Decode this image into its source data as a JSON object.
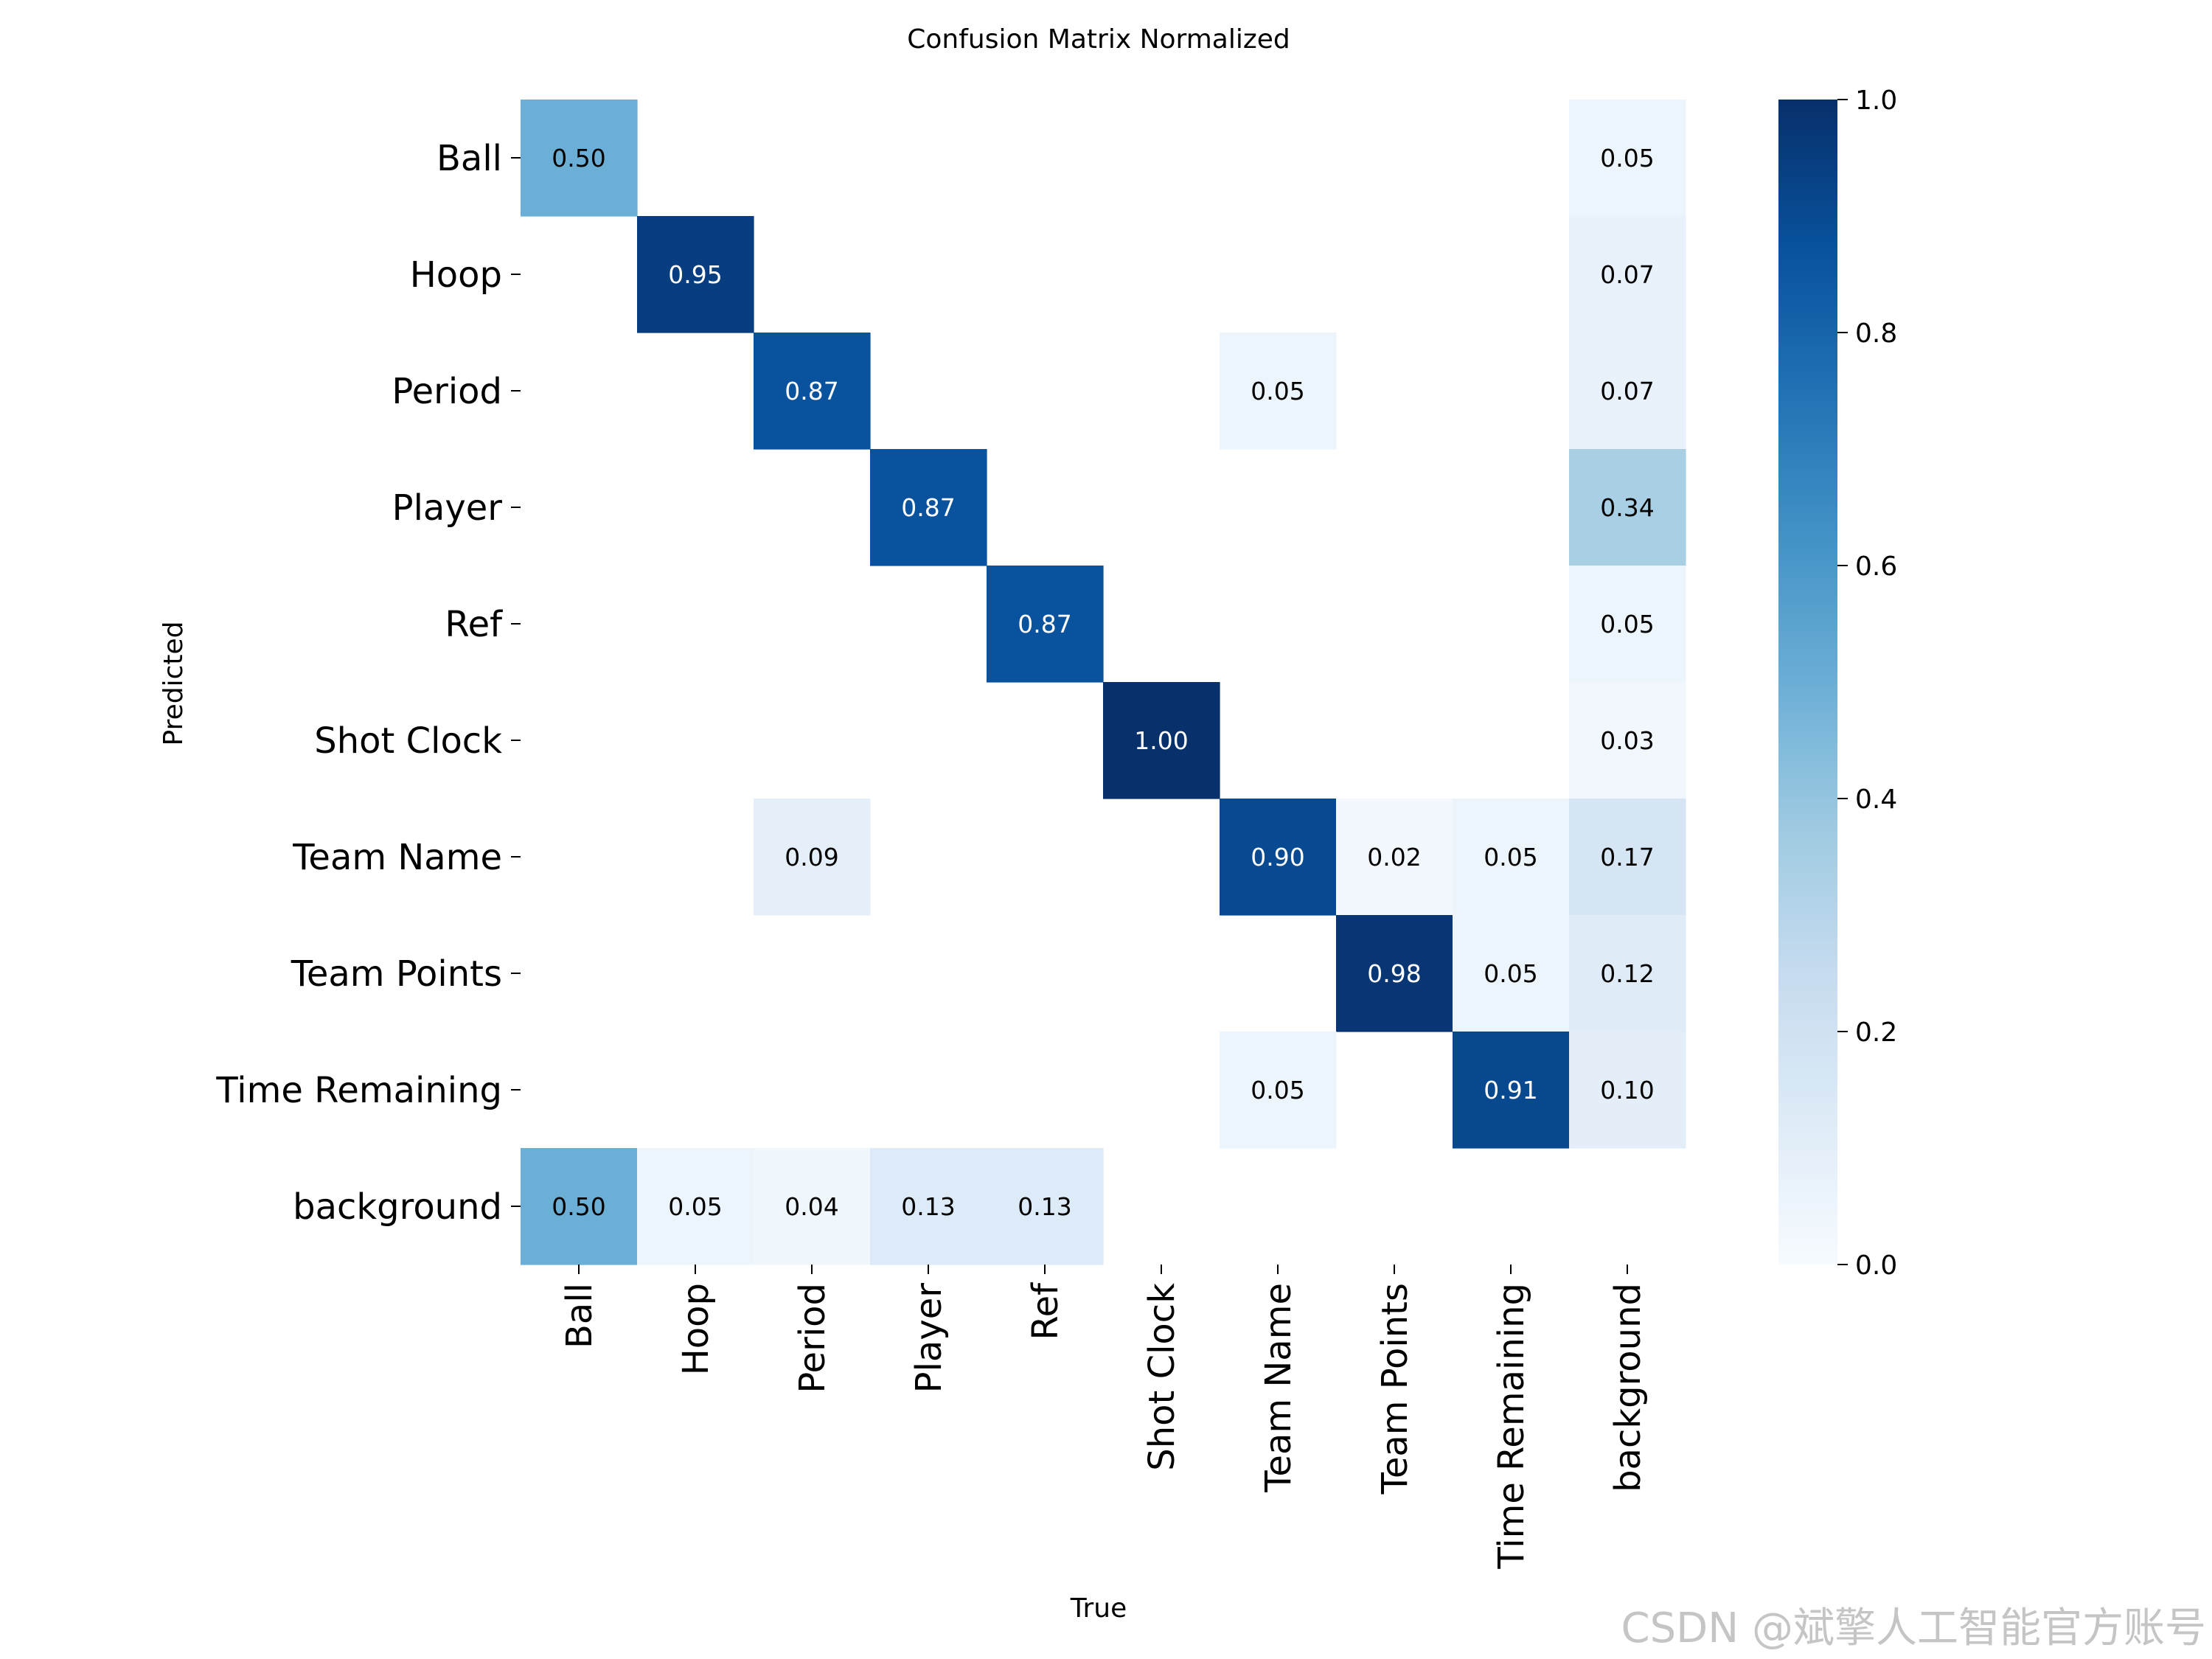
{
  "chart_data": {
    "type": "heatmap",
    "title": "Confusion Matrix Normalized",
    "xlabel": "True",
    "ylabel": "Predicted",
    "x_categories": [
      "Ball",
      "Hoop",
      "Period",
      "Player",
      "Ref",
      "Shot Clock",
      "Team Name",
      "Team Points",
      "Time Remaining",
      "background"
    ],
    "y_categories": [
      "Ball",
      "Hoop",
      "Period",
      "Player",
      "Ref",
      "Shot Clock",
      "Team Name",
      "Team Points",
      "Time Remaining",
      "background"
    ],
    "values": [
      [
        0.5,
        null,
        null,
        null,
        null,
        null,
        null,
        null,
        null,
        0.05
      ],
      [
        null,
        0.95,
        null,
        null,
        null,
        null,
        null,
        null,
        null,
        0.07
      ],
      [
        null,
        null,
        0.87,
        null,
        null,
        null,
        0.05,
        null,
        null,
        0.07
      ],
      [
        null,
        null,
        null,
        0.87,
        null,
        null,
        null,
        null,
        null,
        0.34
      ],
      [
        null,
        null,
        null,
        null,
        0.87,
        null,
        null,
        null,
        null,
        0.05
      ],
      [
        null,
        null,
        null,
        null,
        null,
        1.0,
        null,
        null,
        null,
        0.03
      ],
      [
        null,
        null,
        0.09,
        null,
        null,
        null,
        0.9,
        0.02,
        0.05,
        0.17
      ],
      [
        null,
        null,
        null,
        null,
        null,
        null,
        null,
        0.98,
        0.05,
        0.12
      ],
      [
        null,
        null,
        null,
        null,
        null,
        null,
        0.05,
        null,
        0.91,
        0.1
      ],
      [
        0.5,
        0.05,
        0.04,
        0.13,
        0.13,
        null,
        null,
        null,
        null,
        null
      ]
    ],
    "value_format": "2 decimals",
    "colormap": "Blues",
    "colormap_stops": [
      "#f7fbff",
      "#deebf7",
      "#c6dbef",
      "#9ecae1",
      "#6baed6",
      "#4292c6",
      "#2171b5",
      "#08519c",
      "#08306b"
    ],
    "colorbar": {
      "range": [
        0.0,
        1.0
      ],
      "ticks": [
        "0.0",
        "0.2",
        "0.4",
        "0.6",
        "0.8",
        "1.0"
      ]
    },
    "annotation_text_colors": {
      "light": "#ffffff",
      "dark": "#000000",
      "threshold": 0.6
    }
  },
  "watermark": "CSDN @斌擎人工智能官方账号"
}
